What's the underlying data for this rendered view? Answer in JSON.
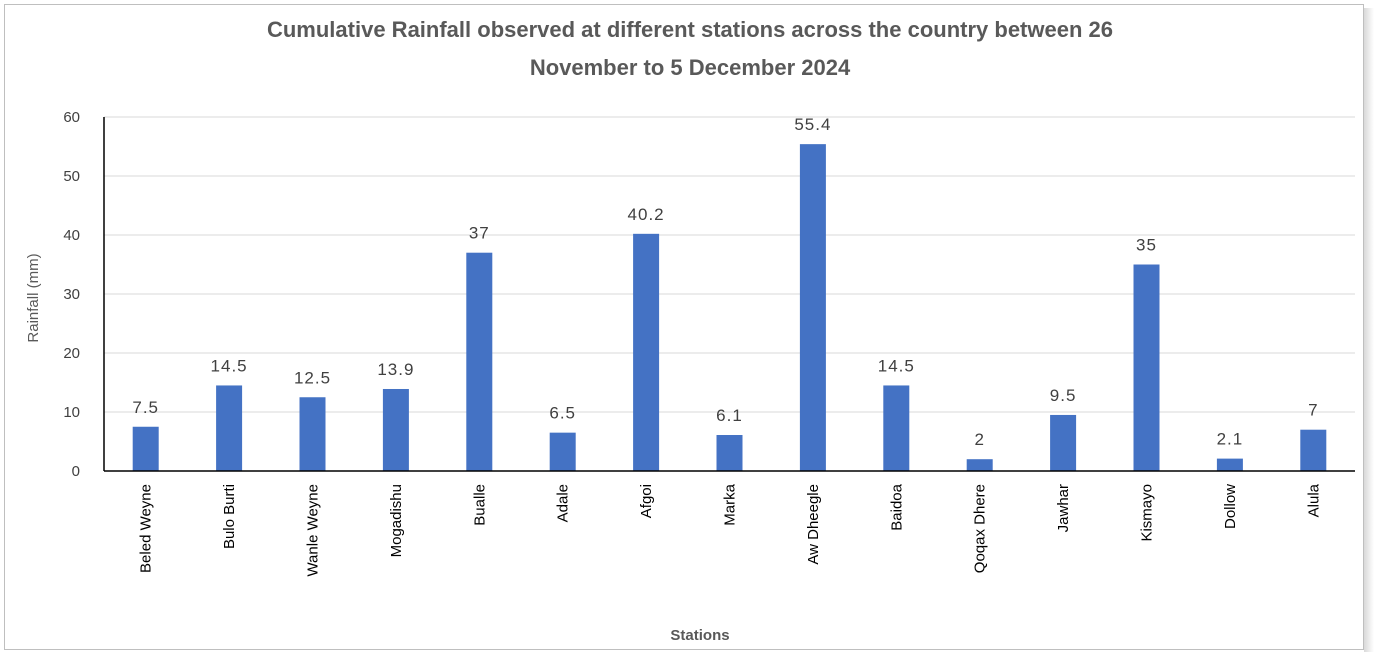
{
  "chart_data": {
    "type": "bar",
    "title_lines": [
      "Cumulative Rainfall observed at different stations across the country between 26",
      "November to 5 December 2024"
    ],
    "xlabel": "Stations",
    "ylabel": "Rainfall (mm)",
    "ylim": [
      0,
      60
    ],
    "yticks": [
      0,
      10,
      20,
      30,
      40,
      50,
      60
    ],
    "grid": true,
    "legend": "none",
    "bar_color": "#4472C4",
    "categories": [
      "Beled Weyne",
      "Bulo Burti",
      "Wanle Weyne",
      "Mogadishu",
      "Bualle",
      "Adale",
      "Afgoi",
      "Marka",
      "Aw Dheegle",
      "Baidoa",
      "Qoqax Dhere",
      "Jawhar",
      "Kismayo",
      "Dollow",
      "Alula"
    ],
    "values": [
      7.5,
      14.5,
      12.5,
      13.9,
      37,
      6.5,
      40.2,
      6.1,
      55.4,
      14.5,
      2,
      9.5,
      35,
      2.1,
      7
    ],
    "data_labels": [
      "7.5",
      "14.5",
      "12.5",
      "13.9",
      "37",
      "6.5",
      "40.2",
      "6.1",
      "55.4",
      "14.5",
      "2",
      "9.5",
      "35",
      "2.1",
      "7"
    ]
  }
}
